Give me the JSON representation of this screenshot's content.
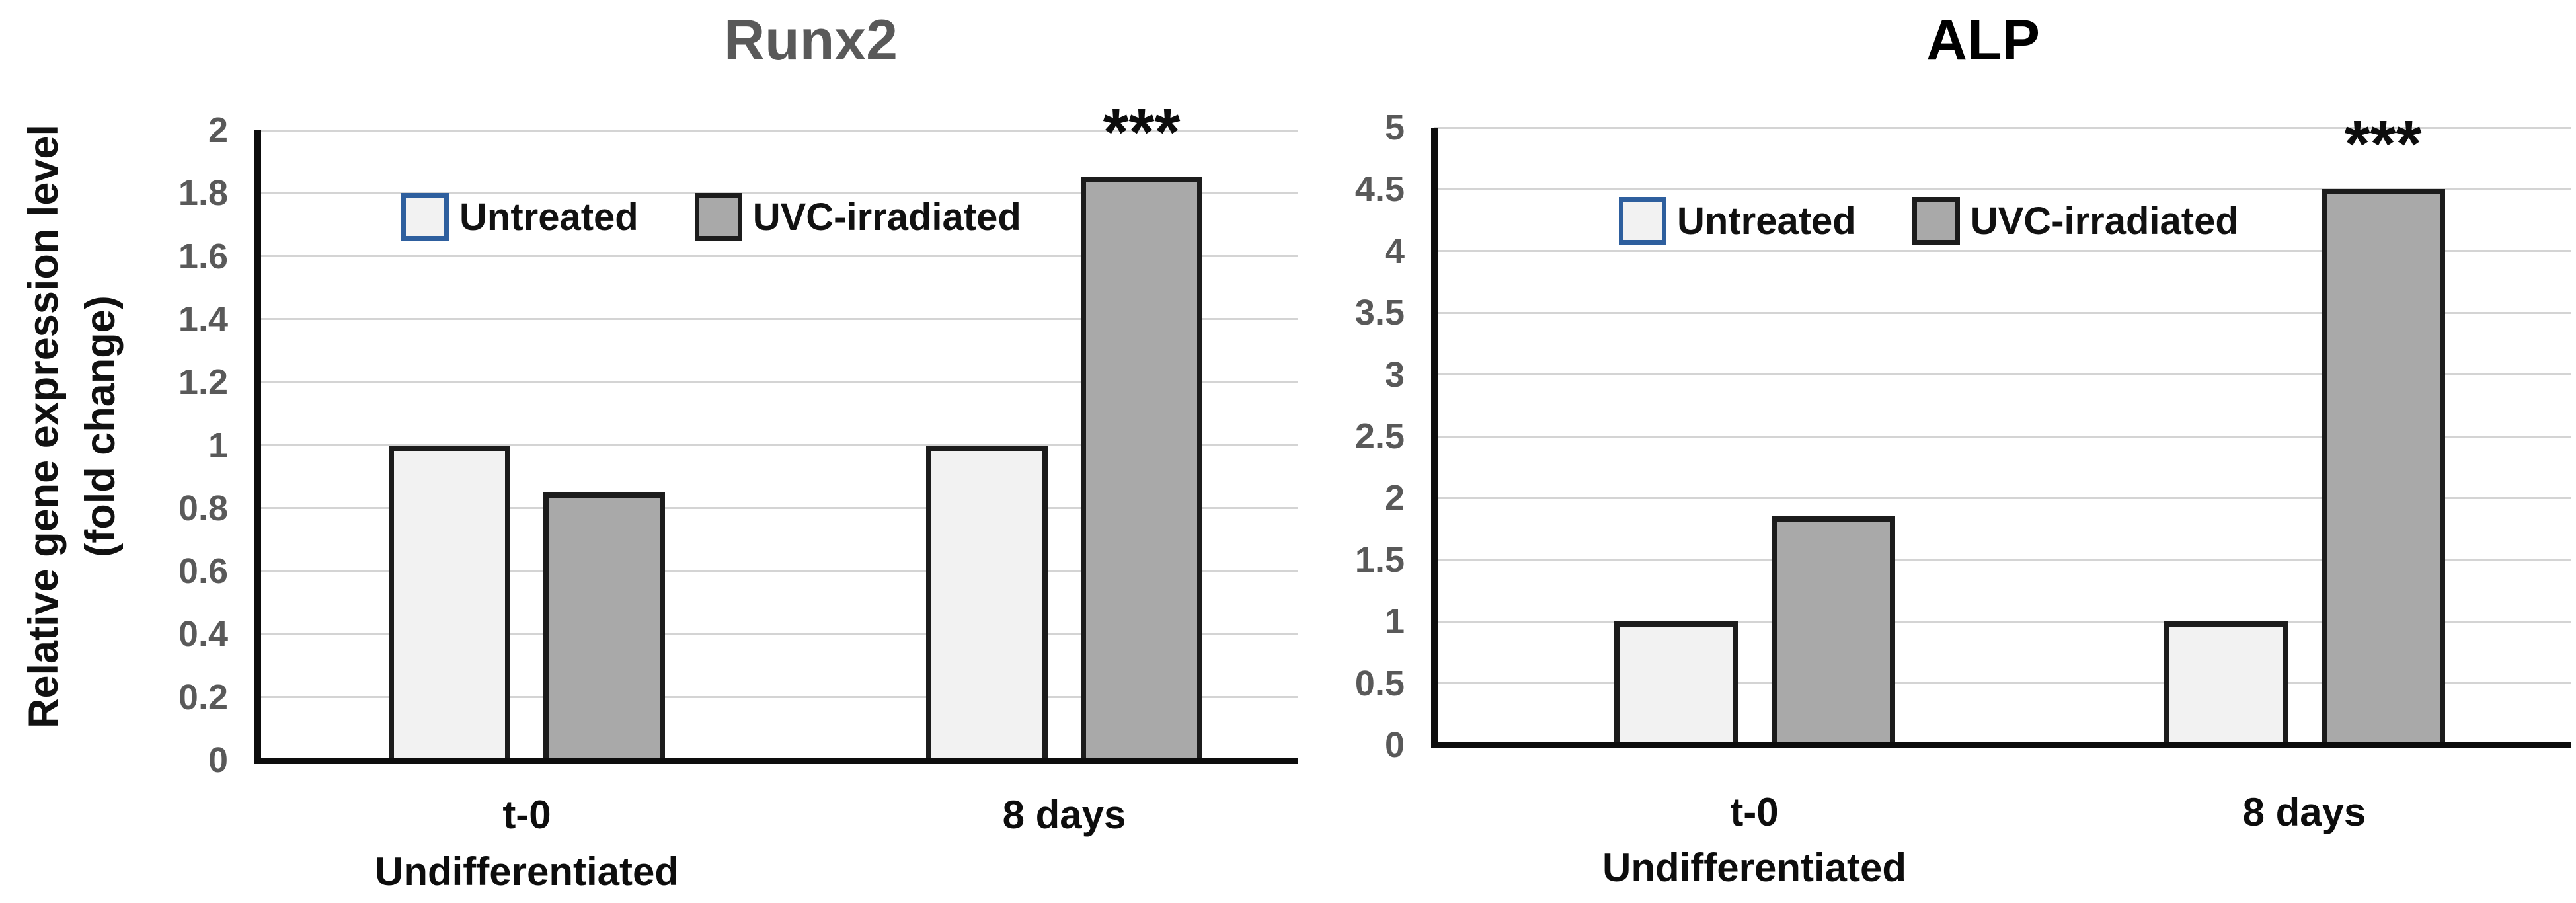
{
  "figure": {
    "y_axis_label_line1": "Relative gene expression level",
    "y_axis_label_line2": "(fold change)"
  },
  "colors": {
    "untreated_fill": "#f2f2f2",
    "uvc_fill": "#a9a9a9",
    "bar_border": "#1c1c1c",
    "legend_untreated_border": "#2e5f9e",
    "legend_uvc_border": "#1c1c1c",
    "gridline": "#d4d4d4",
    "axis_line": "#0d0d0d",
    "tick_text": "#595959",
    "runx2_title_color": "#595959",
    "alp_title_color": "#000000"
  },
  "chart_data": [
    {
      "type": "bar",
      "title": "Runx2",
      "categories": [
        "t-0",
        "8 days"
      ],
      "category_sublabels": [
        "Undifferentiated",
        ""
      ],
      "series": [
        {
          "name": "Untreated",
          "values": [
            1.0,
            1.0
          ]
        },
        {
          "name": "UVC-irradiated",
          "values": [
            0.85,
            1.85
          ]
        }
      ],
      "ylim": [
        0,
        2
      ],
      "ytick_step": 0.2,
      "ytick_labels": [
        "0",
        "0.2",
        "0.4",
        "0.6",
        "0.8",
        "1",
        "1.2",
        "1.4",
        "1.6",
        "1.8",
        "2"
      ],
      "ylabel": "Relative gene expression level (fold change)",
      "xlabel": "",
      "grid": true,
      "legend_position": "top-inside",
      "annotations": [
        {
          "text": "***",
          "category_index": 1,
          "series_index": 1
        }
      ]
    },
    {
      "type": "bar",
      "title": "ALP",
      "categories": [
        "t-0",
        "8 days"
      ],
      "category_sublabels": [
        "Undifferentiated",
        ""
      ],
      "series": [
        {
          "name": "Untreated",
          "values": [
            1.0,
            1.0
          ]
        },
        {
          "name": "UVC-irradiated",
          "values": [
            1.85,
            4.5
          ]
        }
      ],
      "ylim": [
        0,
        5
      ],
      "ytick_step": 0.5,
      "ytick_labels": [
        "0",
        "0.5",
        "1",
        "1.5",
        "2",
        "2.5",
        "3",
        "3.5",
        "4",
        "4.5",
        "5"
      ],
      "ylabel": "",
      "xlabel": "",
      "grid": true,
      "legend_position": "top-inside",
      "annotations": [
        {
          "text": "***",
          "category_index": 1,
          "series_index": 1
        }
      ]
    }
  ]
}
